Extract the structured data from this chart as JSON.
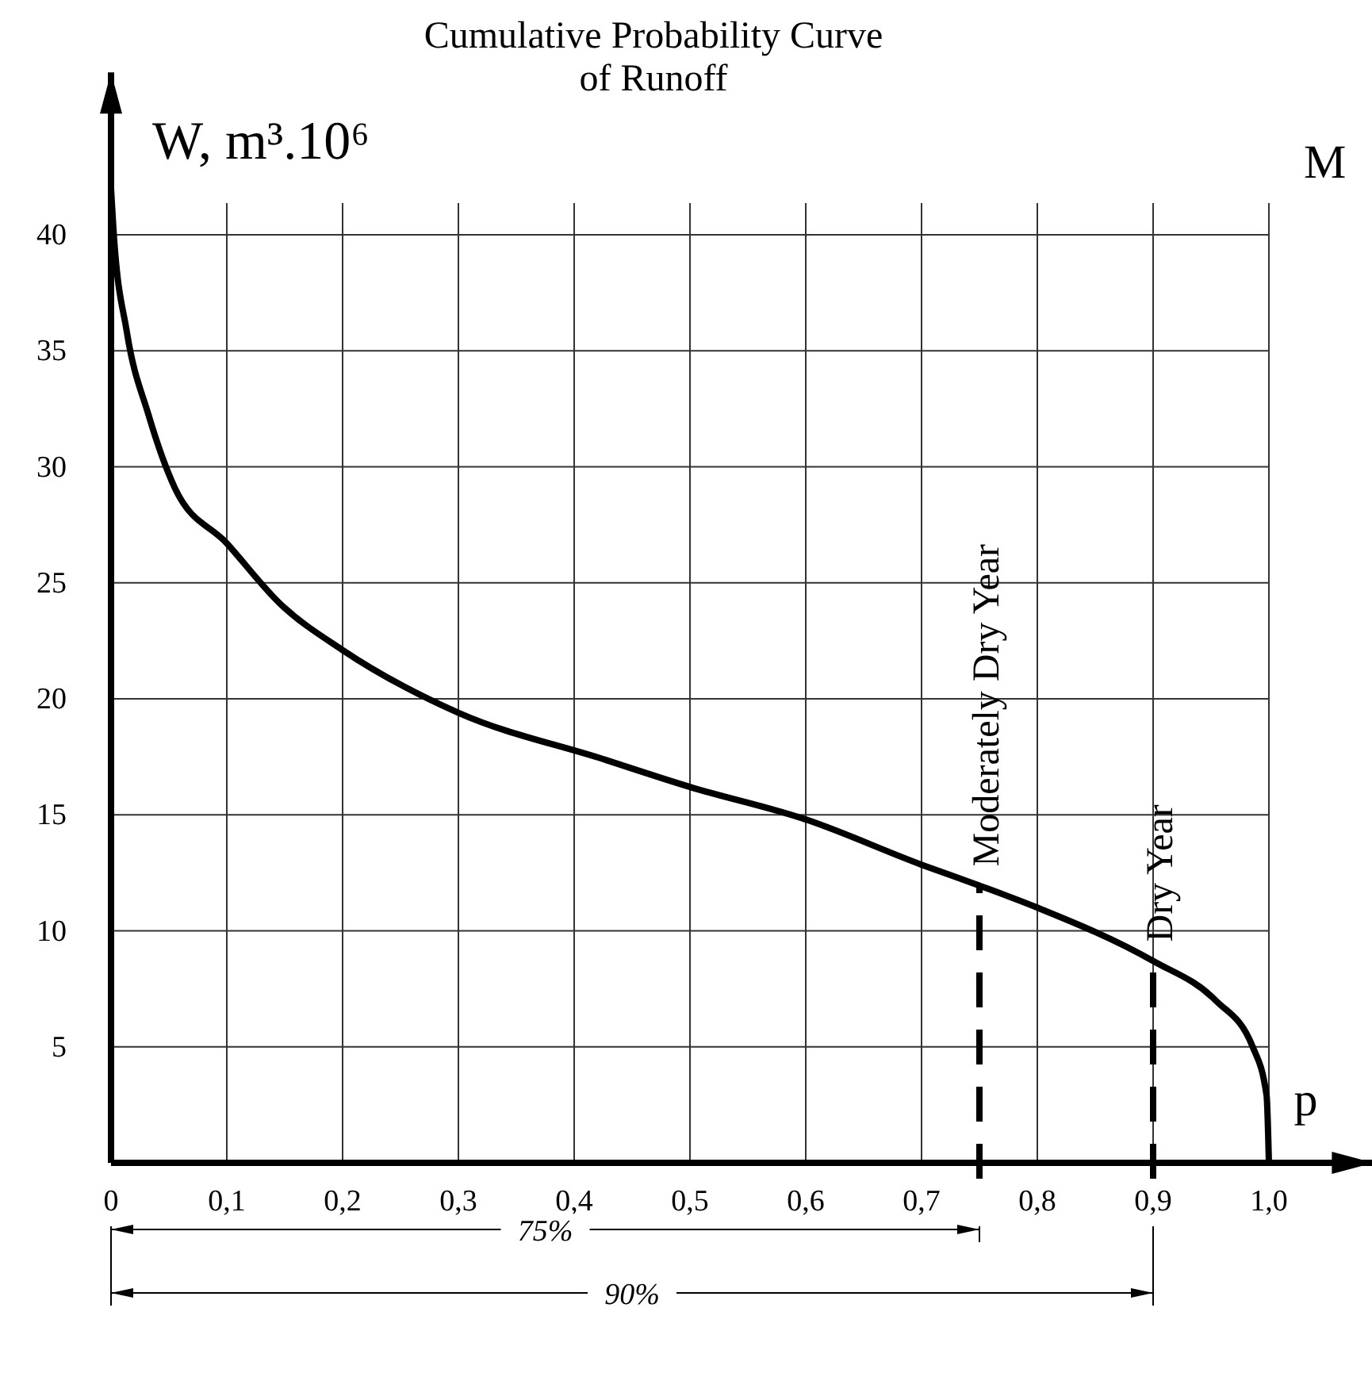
{
  "chart_data": {
    "type": "line",
    "title": "Cumulative Probability Curve of Runoff",
    "ylabel": "W, m³.10⁶",
    "xlabel": "p",
    "x": [
      0,
      0.002,
      0.0137,
      0.032,
      0.055,
      0.1,
      0.146,
      0.2,
      0.3,
      0.425,
      0.5,
      0.6,
      0.7,
      0.75,
      0.8,
      0.9,
      0.954,
      0.986,
      0.998,
      1.0
    ],
    "series": [
      {
        "color": "#000000",
        "values": [
          42,
          40.3,
          35.8,
          32.3,
          29.1,
          26.7,
          24.1,
          22.1,
          19.4,
          17.4,
          16.2,
          14.8,
          12.85,
          11.95,
          11.0,
          8.7,
          7.0,
          5.0,
          2.9,
          0
        ]
      }
    ],
    "xlim": [
      0,
      1.09
    ],
    "ylim": [
      0,
      47
    ],
    "xticks": [
      {
        "value": 0,
        "label": "0"
      },
      {
        "value": 0.1,
        "label": "0,1"
      },
      {
        "value": 0.2,
        "label": "0,2"
      },
      {
        "value": 0.3,
        "label": "0,3"
      },
      {
        "value": 0.4,
        "label": "0,4"
      },
      {
        "value": 0.5,
        "label": "0,5"
      },
      {
        "value": 0.6,
        "label": "0,6"
      },
      {
        "value": 0.7,
        "label": "0,7"
      },
      {
        "value": 0.8,
        "label": "0,8"
      },
      {
        "value": 0.9,
        "label": "0,9"
      },
      {
        "value": 1.0,
        "label": "1,0"
      }
    ],
    "yticks": [
      5,
      10,
      15,
      20,
      25,
      30,
      35,
      40
    ],
    "grid": true,
    "marker": "none",
    "line_style": "solid",
    "ref_lines": [
      {
        "axis": "x",
        "value": 0.75,
        "label": "Moderately Dry Year",
        "line_style": "dashed",
        "color": "#000000"
      },
      {
        "axis": "x",
        "value": 0.9,
        "label": "Dry Year",
        "line_style": "dashed",
        "color": "#000000"
      }
    ],
    "annotations": [
      "75%",
      "90%",
      "M"
    ]
  }
}
